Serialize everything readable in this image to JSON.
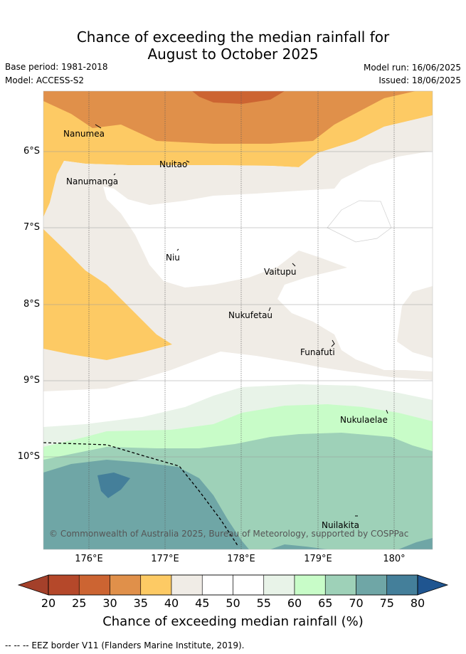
{
  "title_line1": "Chance of exceeding the median rainfall for",
  "title_line2": "August to October 2025",
  "base_period": "Base period: 1981-2018",
  "model": "Model: ACCESS-S2",
  "model_run": "Model run: 16/06/2025",
  "issued": "Issued: 18/06/2025",
  "latitude_labels": [
    "6°S",
    "7°S",
    "8°S",
    "9°S",
    "10°S"
  ],
  "longitude_labels": [
    "176°E",
    "177°E",
    "178°E",
    "179°E",
    "180°"
  ],
  "places": [
    "Nanumea",
    "Nuitao",
    "Nanumanga",
    "Niu",
    "Vaitupu",
    "Nukufetau",
    "Funafuti",
    "Nukulaelae",
    "Nuilakita"
  ],
  "copyright": "© Commonwealth of Australia 2025, Bureau of Meteorology, supported by COSPPac",
  "colorbar": {
    "ticks": [
      "20",
      "25",
      "30",
      "35",
      "40",
      "45",
      "50",
      "55",
      "60",
      "65",
      "70",
      "75",
      "80"
    ],
    "colors": [
      "#b5482a",
      "#cc6432",
      "#e0904a",
      "#fdca64",
      "#f0ece6",
      "#ffffff",
      "#ffffff",
      "#e8f3e8",
      "#c8fcc8",
      "#9ed1b8",
      "#6fa6a6",
      "#447f9a"
    ],
    "under_color": "#a4402a",
    "over_color": "#1f5590",
    "title": "Chance of exceeding median rainfall (%)"
  },
  "footnote": "-- -- -- EEZ border V11 (Flanders Marine Institute, 2019)."
}
